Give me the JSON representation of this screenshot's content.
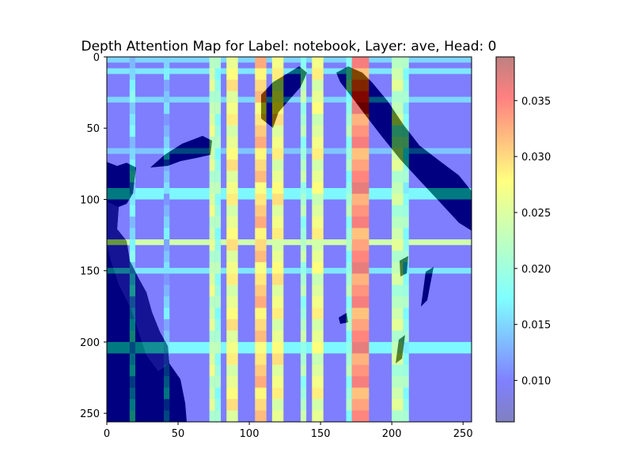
{
  "chart_data": {
    "type": "heatmap",
    "title": "Depth Attention Map for Label: notebook, Layer: ave, Head: 0",
    "xlabel": "",
    "ylabel": "",
    "xlim": [
      0,
      256
    ],
    "ylim": [
      256,
      0
    ],
    "x_ticks": [
      0,
      50,
      100,
      150,
      200,
      250
    ],
    "y_ticks": [
      0,
      50,
      100,
      150,
      200,
      250
    ],
    "x_tick_labels": [
      "0",
      "50",
      "100",
      "150",
      "200",
      "250"
    ],
    "y_tick_labels": [
      "0",
      "50",
      "100",
      "150",
      "200",
      "250"
    ],
    "colormap": "jet",
    "overlay_alpha": 0.5,
    "colorbar": {
      "range": [
        0.0063,
        0.0389
      ],
      "ticks": [
        0.01,
        0.015,
        0.02,
        0.025,
        0.03,
        0.035
      ],
      "tick_labels": [
        "0.010",
        "0.015",
        "0.020",
        "0.025",
        "0.030",
        "0.035"
      ]
    },
    "attention_columns": [
      {
        "x": [
          16,
          20
        ],
        "level": 0.016
      },
      {
        "x": [
          40,
          44
        ],
        "level": 0.014
      },
      {
        "x": [
          72,
          76
        ],
        "level": 0.024
      },
      {
        "x": [
          76,
          80
        ],
        "level": 0.02
      },
      {
        "x": [
          84,
          92
        ],
        "level": 0.027
      },
      {
        "x": [
          104,
          112
        ],
        "level": 0.03
      },
      {
        "x": [
          116,
          124
        ],
        "level": 0.027
      },
      {
        "x": [
          136,
          140
        ],
        "level": 0.021
      },
      {
        "x": [
          144,
          152
        ],
        "level": 0.026
      },
      {
        "x": [
          168,
          172
        ],
        "level": 0.02
      },
      {
        "x": [
          172,
          184
        ],
        "level": 0.034
      },
      {
        "x": [
          200,
          208
        ],
        "level": 0.023
      },
      {
        "x": [
          208,
          212
        ],
        "level": 0.019
      }
    ],
    "attention_rows": [
      {
        "y": [
          0,
          4
        ],
        "level": 0.015
      },
      {
        "y": [
          8,
          12
        ],
        "level": 0.016
      },
      {
        "y": [
          28,
          32
        ],
        "level": 0.015
      },
      {
        "y": [
          64,
          68
        ],
        "level": 0.014
      },
      {
        "y": [
          92,
          100
        ],
        "level": 0.017
      },
      {
        "y": [
          128,
          132
        ],
        "level": 0.024
      },
      {
        "y": [
          148,
          152
        ],
        "level": 0.016
      },
      {
        "y": [
          200,
          208
        ],
        "level": 0.017
      }
    ]
  }
}
